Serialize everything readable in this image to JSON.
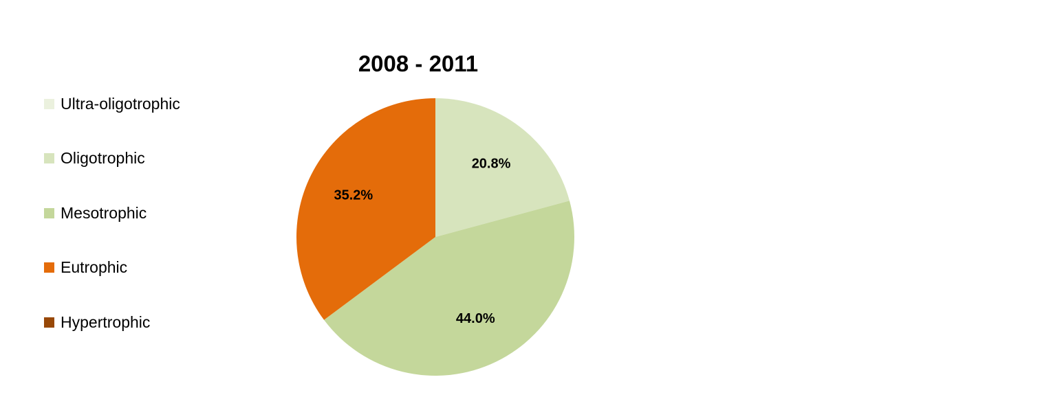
{
  "chart_data": {
    "type": "pie",
    "title": "2008 - 2011",
    "categories": [
      "Ultra-oligotrophic",
      "Oligotrophic",
      "Mesotrophic",
      "Eutrophic",
      "Hypertrophic"
    ],
    "values": [
      0,
      20.8,
      44.0,
      35.2,
      0
    ],
    "value_labels": [
      "",
      "20.8%",
      "44.0%",
      "35.2%",
      ""
    ],
    "colors": [
      "#EBF1DE",
      "#D7E4BD",
      "#C4D79B",
      "#E46C0A",
      "#984807"
    ],
    "legend_position": "left"
  }
}
